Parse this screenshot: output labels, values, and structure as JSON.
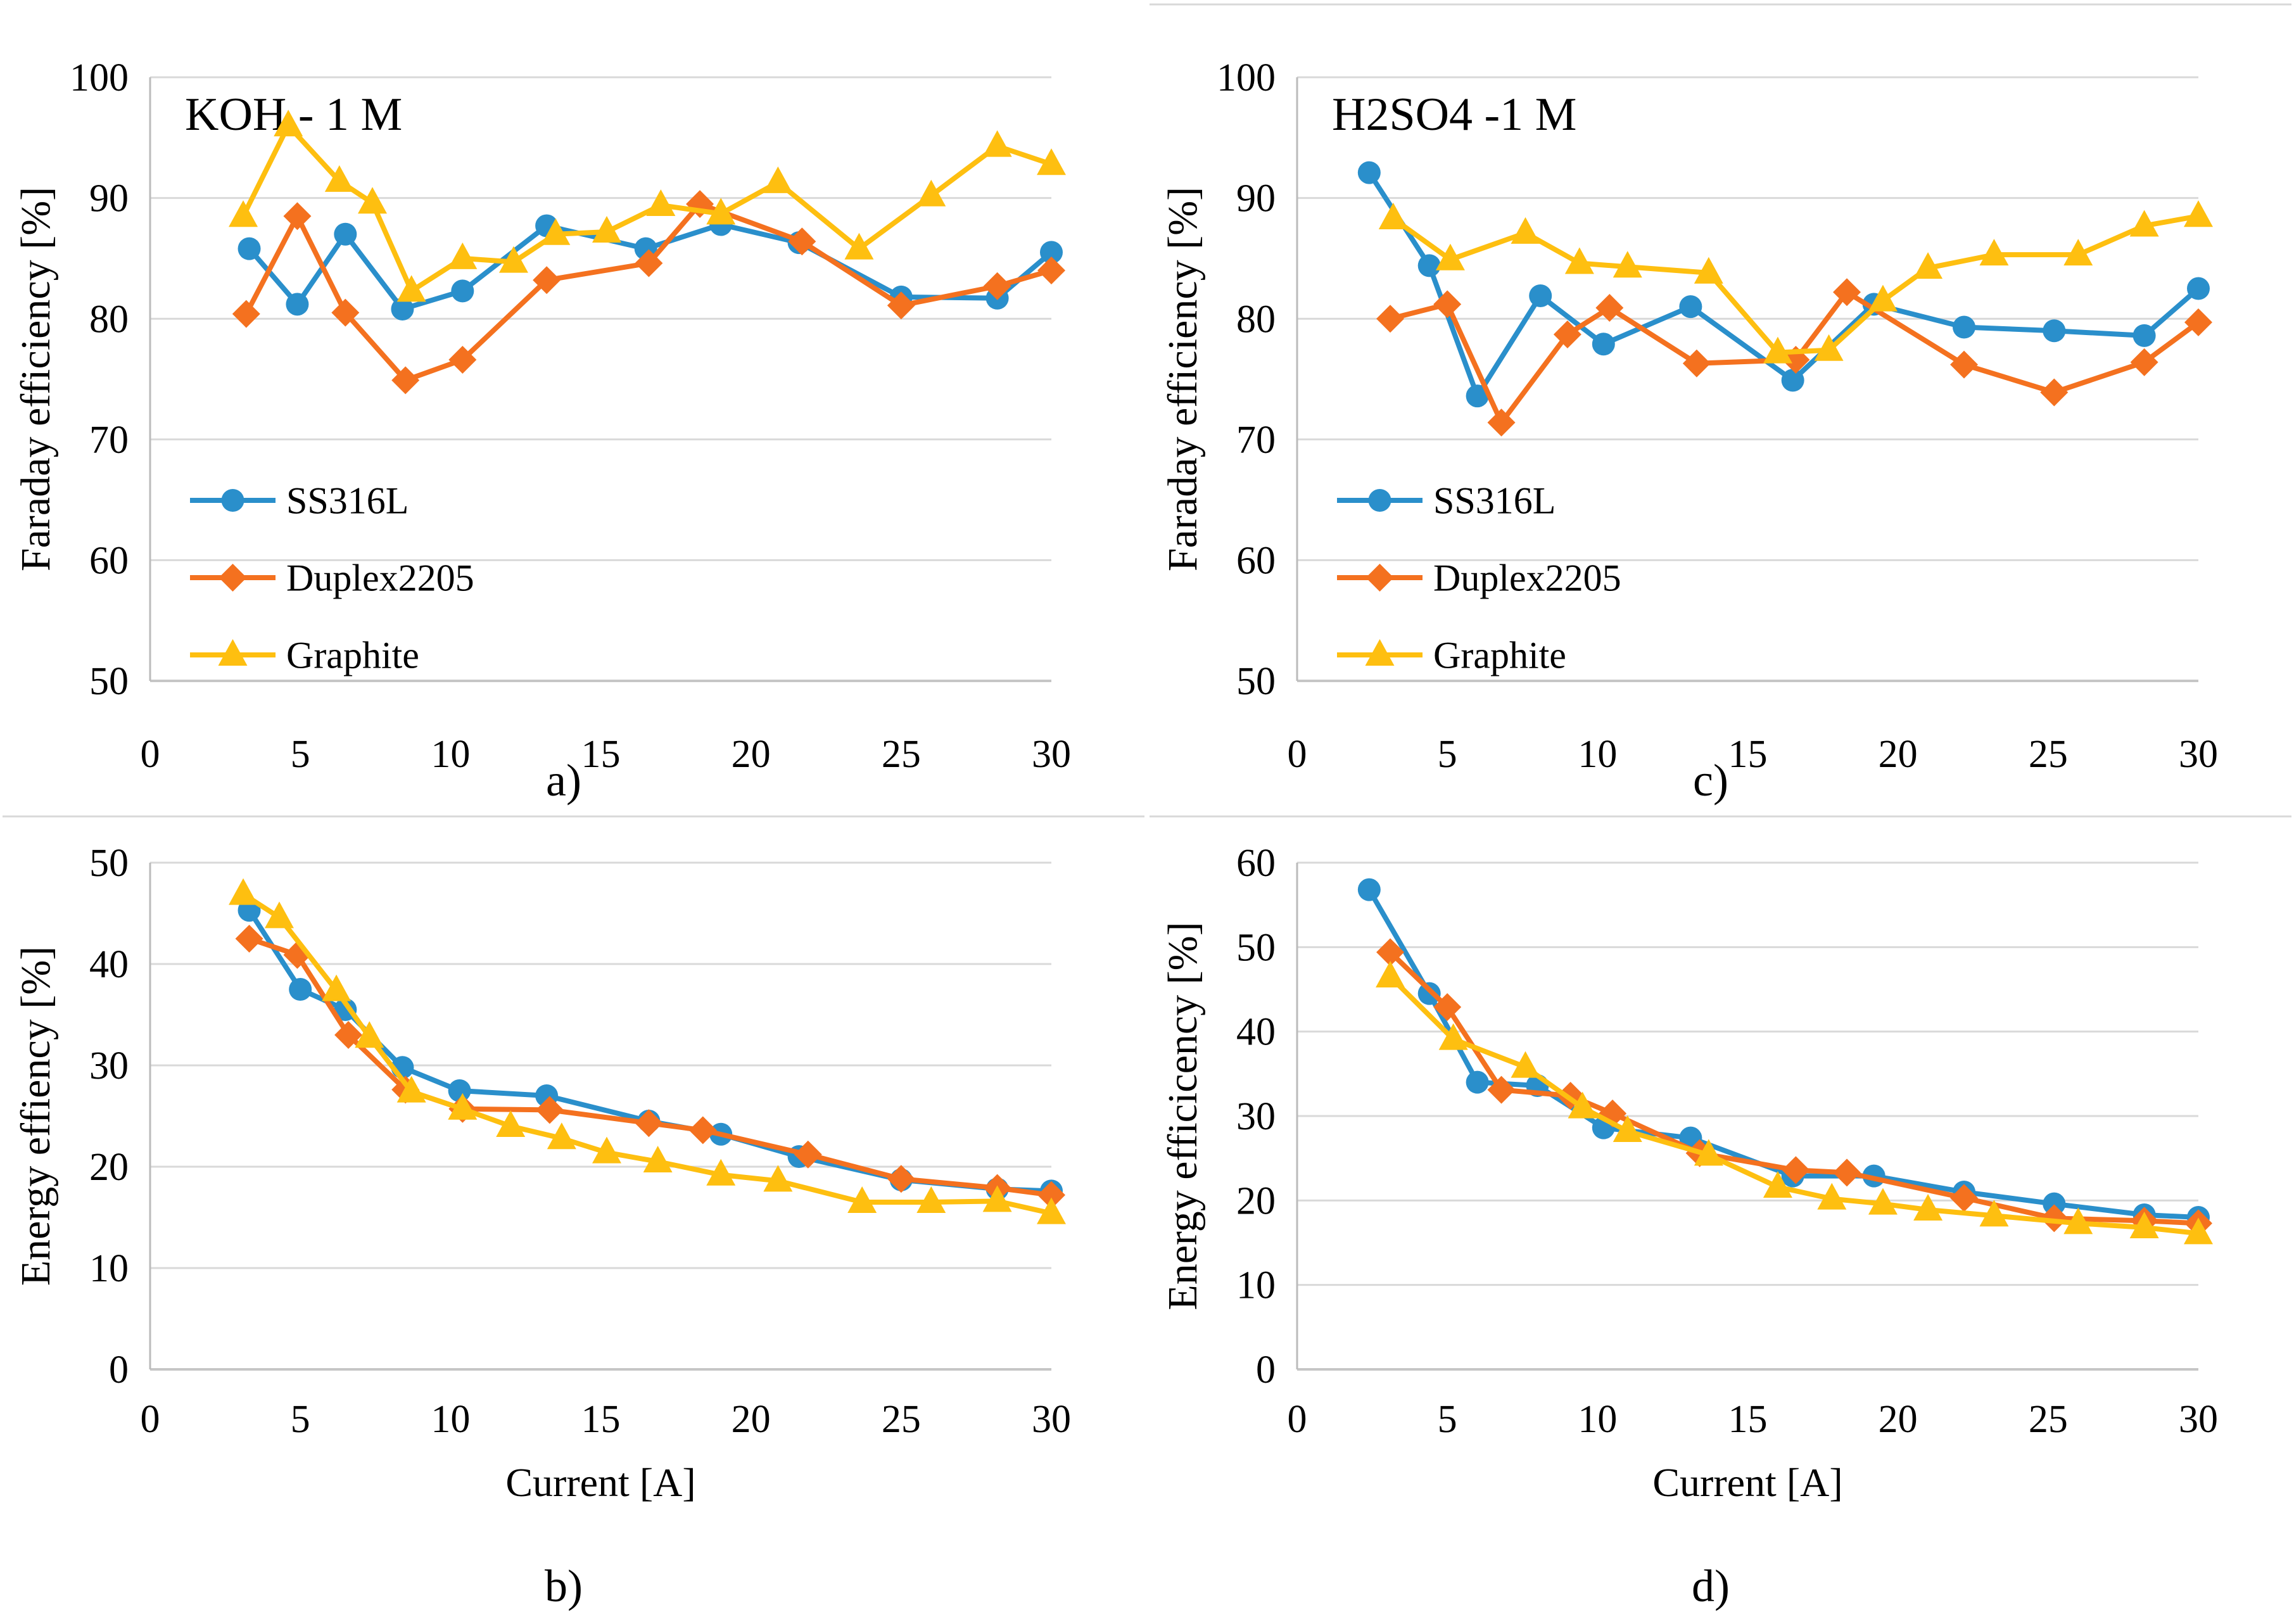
{
  "figure": {
    "colors": {
      "ss316l": "#2A8FCB",
      "duplex2205": "#F4711F",
      "graphite": "#FEBF10",
      "gridline": "#D9D9D9",
      "axis_line": "#BBBBBB",
      "bottom_line": "#C6C6C6",
      "text": "#000000",
      "background": "#FFFFFF"
    }
  },
  "chart_data": [
    {
      "id": "a",
      "type": "line",
      "caption": "a)",
      "title": "KOH - 1 M",
      "ylabel": "Faraday efficiency [%]",
      "xlabel": "",
      "ylim": [
        50,
        100
      ],
      "yticks": [
        50,
        60,
        70,
        80,
        90,
        100
      ],
      "xlim": [
        0,
        30
      ],
      "xticks": [
        0,
        5,
        10,
        15,
        20,
        25,
        30
      ],
      "grid": true,
      "legend_visible": true,
      "legend_position": "lower-left",
      "top_border": false,
      "series": [
        {
          "name": "SS316L",
          "marker": "circle",
          "color_key": "ss316l",
          "x": [
            3.3,
            4.9,
            6.5,
            8.4,
            10.4,
            13.2,
            16.5,
            19,
            21.6,
            25,
            28.2,
            30
          ],
          "y": [
            85.8,
            81.2,
            87,
            80.8,
            82.3,
            87.7,
            85.8,
            87.8,
            86.3,
            81.8,
            81.7,
            85.5
          ]
        },
        {
          "name": "Duplex2205",
          "marker": "diamond",
          "color_key": "duplex2205",
          "x": [
            3.2,
            4.9,
            6.5,
            8.5,
            10.4,
            13.2,
            16.6,
            18.3,
            21.7,
            25,
            28.2,
            30
          ],
          "y": [
            80.4,
            88.5,
            80.5,
            74.9,
            76.6,
            83.2,
            84.6,
            89.5,
            86.4,
            81.1,
            82.7,
            84
          ]
        },
        {
          "name": "Graphite",
          "marker": "triangle",
          "color_key": "graphite",
          "x": [
            3.1,
            4.6,
            6.3,
            7.4,
            8.7,
            10.4,
            12.1,
            13.5,
            15.2,
            17,
            19,
            20.9,
            23.6,
            26,
            28.2,
            30
          ],
          "y": [
            88.5,
            96,
            91.4,
            89.6,
            82.3,
            85,
            84.7,
            87,
            87.2,
            89.4,
            88.7,
            91.3,
            85.8,
            90.2,
            94.3,
            92.8
          ]
        }
      ]
    },
    {
      "id": "c",
      "type": "line",
      "caption": "c)",
      "title": "H2SO4 -1 M",
      "ylabel": "Faraday efficiency [%]",
      "xlabel": "",
      "ylim": [
        50,
        100
      ],
      "yticks": [
        50,
        60,
        70,
        80,
        90,
        100
      ],
      "xlim": [
        0,
        30
      ],
      "xticks": [
        0,
        5,
        10,
        15,
        20,
        25,
        30
      ],
      "grid": true,
      "legend_visible": true,
      "legend_position": "lower-left",
      "top_border": true,
      "series": [
        {
          "name": "SS316L",
          "marker": "circle",
          "color_key": "ss316l",
          "x": [
            2.4,
            4.4,
            6,
            8.1,
            10.2,
            13.1,
            16.5,
            19.2,
            22.2,
            25.2,
            28.2,
            30
          ],
          "y": [
            92.1,
            84.4,
            73.6,
            81.9,
            77.9,
            81,
            74.9,
            81.2,
            79.3,
            79,
            78.6,
            82.5
          ]
        },
        {
          "name": "Duplex2205",
          "marker": "diamond",
          "color_key": "duplex2205",
          "x": [
            3.1,
            5,
            6.8,
            9,
            10.4,
            13.3,
            16.6,
            18.3,
            22.2,
            25.2,
            28.2,
            30
          ],
          "y": [
            80,
            81.2,
            71.4,
            78.7,
            80.9,
            76.3,
            76.6,
            82.2,
            76.2,
            73.9,
            76.4,
            79.7
          ]
        },
        {
          "name": "Graphite",
          "marker": "triangle",
          "color_key": "graphite",
          "x": [
            3.2,
            5.1,
            7.6,
            9.4,
            11,
            13.7,
            16,
            17.7,
            19.5,
            21,
            23.2,
            26,
            28.2,
            30
          ],
          "y": [
            88.3,
            84.9,
            87.1,
            84.6,
            84.3,
            83.8,
            77.2,
            77.4,
            81.5,
            84.2,
            85.3,
            85.3,
            87.7,
            88.5
          ]
        }
      ]
    },
    {
      "id": "b",
      "type": "line",
      "caption": "b)",
      "title": "",
      "ylabel": "Energy effiency [%]",
      "xlabel": "Current [A]",
      "ylim": [
        0,
        50
      ],
      "yticks": [
        0,
        10,
        20,
        30,
        40,
        50
      ],
      "xlim": [
        0,
        30
      ],
      "xticks": [
        0,
        5,
        10,
        15,
        20,
        25,
        30
      ],
      "grid": true,
      "legend_visible": false,
      "legend_position": "none",
      "top_border": true,
      "series": [
        {
          "name": "SS316L",
          "marker": "circle",
          "color_key": "ss316l",
          "x": [
            3.3,
            5,
            6.5,
            8.4,
            10.3,
            13.2,
            16.6,
            19,
            21.6,
            25,
            28.2,
            30
          ],
          "y": [
            45.3,
            37.5,
            35.5,
            29.8,
            27.5,
            27,
            24.5,
            23.2,
            21,
            18.7,
            17.8,
            17.6
          ]
        },
        {
          "name": "Duplex2205",
          "marker": "diamond",
          "color_key": "duplex2205",
          "x": [
            3.3,
            4.9,
            6.6,
            8.5,
            10.4,
            13.3,
            16.6,
            18.4,
            21.9,
            25,
            28.2,
            30
          ],
          "y": [
            42.5,
            40.9,
            33,
            27.6,
            25.7,
            25.6,
            24.3,
            23.6,
            21.2,
            18.8,
            17.9,
            17.2
          ]
        },
        {
          "name": "Graphite",
          "marker": "triangle",
          "color_key": "graphite",
          "x": [
            3.1,
            4.3,
            6.2,
            7.3,
            8.7,
            10.4,
            12,
            13.7,
            15.2,
            16.9,
            19,
            20.9,
            23.7,
            26,
            28.2,
            30
          ],
          "y": [
            46.9,
            44.6,
            37.4,
            32.8,
            27.4,
            25.7,
            24,
            22.8,
            21.4,
            20.5,
            19.2,
            18.6,
            16.5,
            16.5,
            16.6,
            15.4
          ]
        }
      ]
    },
    {
      "id": "d",
      "type": "line",
      "caption": "d)",
      "title": "",
      "ylabel": "Energy efficicency [%]",
      "xlabel": "Current [A]",
      "ylim": [
        0,
        60
      ],
      "yticks": [
        0,
        10,
        20,
        30,
        40,
        50,
        60
      ],
      "xlim": [
        0,
        30
      ],
      "xticks": [
        0,
        5,
        10,
        15,
        20,
        25,
        30
      ],
      "grid": true,
      "legend_visible": false,
      "legend_position": "none",
      "top_border": true,
      "series": [
        {
          "name": "SS316L",
          "marker": "circle",
          "color_key": "ss316l",
          "x": [
            2.4,
            4.4,
            6,
            8,
            10.2,
            13.1,
            16.5,
            19.2,
            22.2,
            25.2,
            28.2,
            30
          ],
          "y": [
            56.8,
            44.5,
            34,
            33.6,
            28.6,
            27.4,
            22.9,
            22.9,
            21,
            19.6,
            18.3,
            18
          ]
        },
        {
          "name": "Duplex2205",
          "marker": "diamond",
          "color_key": "duplex2205",
          "x": [
            3.1,
            5,
            6.8,
            9.1,
            10.5,
            13.4,
            16.6,
            18.3,
            22.2,
            25.2,
            28.2,
            30
          ],
          "y": [
            49.4,
            42.9,
            33.1,
            32.4,
            30.3,
            25.6,
            23.6,
            23.3,
            20.3,
            17.9,
            17.6,
            17.3
          ]
        },
        {
          "name": "Graphite",
          "marker": "triangle",
          "color_key": "graphite",
          "x": [
            3.1,
            5.2,
            7.6,
            9.5,
            11,
            13.7,
            16,
            17.8,
            19.5,
            21,
            23.2,
            26,
            28.2,
            30
          ],
          "y": [
            46.5,
            39.1,
            35.8,
            31,
            28.2,
            25.4,
            21.6,
            20.2,
            19.6,
            18.9,
            18.2,
            17.3,
            16.8,
            16.1
          ]
        }
      ]
    }
  ]
}
